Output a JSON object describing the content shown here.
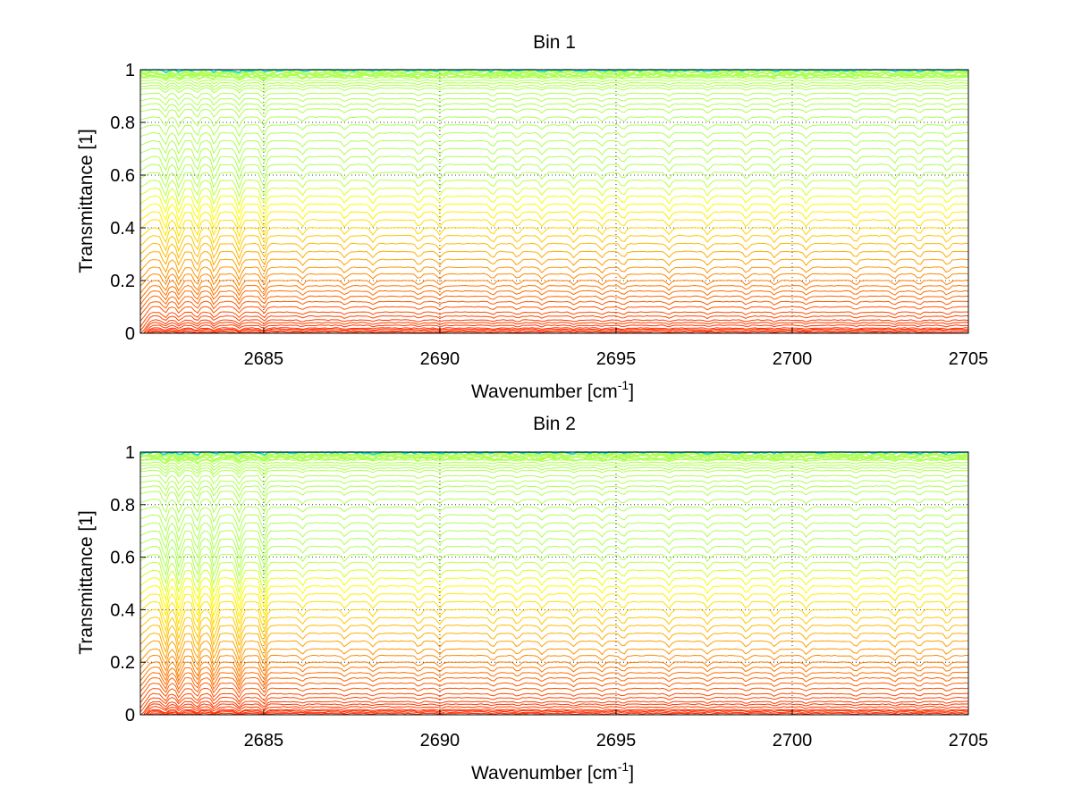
{
  "chart_data": [
    {
      "type": "line",
      "title": "Bin 1",
      "xlabel": "Wavenumber [cm",
      "xlabel_sup": "-1",
      "xlabel_end": "]",
      "ylabel": "Transmittance [1]",
      "xlim": [
        2681.5,
        2705
      ],
      "ylim": [
        0,
        1
      ],
      "xticks": [
        2685,
        2690,
        2695,
        2700,
        2705
      ],
      "yticks": [
        0,
        0.2,
        0.4,
        0.6,
        0.8,
        1
      ],
      "xtick_labels": [
        "2685",
        "2690",
        "2695",
        "2700",
        "2705"
      ],
      "ytick_labels": [
        "0",
        "0.2",
        "0.4",
        "0.6",
        "0.8",
        "1"
      ],
      "grid": true,
      "colormap": [
        "#0000c8",
        "#0080ff",
        "#00e0e0",
        "#80ff80",
        "#ffff00",
        "#ffc000",
        "#ff8000",
        "#ff4000",
        "#ff0000"
      ],
      "series_description": "many spectra (one per layer) spanning transmittance 0 to 1, colored by layer",
      "line_levels": [
        0.0,
        0.005,
        0.01,
        0.015,
        0.02,
        0.03,
        0.04,
        0.05,
        0.065,
        0.08,
        0.1,
        0.12,
        0.14,
        0.16,
        0.18,
        0.2,
        0.225,
        0.25,
        0.28,
        0.31,
        0.34,
        0.37,
        0.4,
        0.43,
        0.46,
        0.49,
        0.52,
        0.55,
        0.58,
        0.61,
        0.64,
        0.67,
        0.7,
        0.73,
        0.76,
        0.79,
        0.82,
        0.85,
        0.87,
        0.89,
        0.91,
        0.93,
        0.94,
        0.95,
        0.96,
        0.97,
        0.975,
        0.98,
        0.985,
        0.99,
        0.995,
        1.0
      ],
      "absorption_lines": [
        2682.2,
        2682.6,
        2683.1,
        2683.6,
        2684.3,
        2685.0,
        2686.1,
        2687.3,
        2688.1,
        2689.4,
        2690.0,
        2691.5,
        2692.2,
        2692.9,
        2693.8,
        2694.6,
        2695.2,
        2696.5,
        2697.6,
        2698.7,
        2699.5,
        2700.4,
        2701.8,
        2702.9,
        2703.6,
        2704.4
      ]
    },
    {
      "type": "line",
      "title": "Bin 2",
      "xlabel": "Wavenumber [cm",
      "xlabel_sup": "-1",
      "xlabel_end": "]",
      "ylabel": "Transmittance [1]",
      "xlim": [
        2681.5,
        2705
      ],
      "ylim": [
        0,
        1
      ],
      "xticks": [
        2685,
        2690,
        2695,
        2700,
        2705
      ],
      "yticks": [
        0,
        0.2,
        0.4,
        0.6,
        0.8,
        1
      ],
      "xtick_labels": [
        "2685",
        "2690",
        "2695",
        "2700",
        "2705"
      ],
      "ytick_labels": [
        "0",
        "0.2",
        "0.4",
        "0.6",
        "0.8",
        "1"
      ],
      "grid": true,
      "colormap": [
        "#0000c8",
        "#0080ff",
        "#00e0e0",
        "#80ff80",
        "#ffff00",
        "#ffc000",
        "#ff8000",
        "#ff4000",
        "#ff0000"
      ],
      "series_description": "many spectra (one per layer) spanning transmittance 0 to 1, colored by layer",
      "line_levels": [
        0.0,
        0.005,
        0.01,
        0.015,
        0.02,
        0.03,
        0.04,
        0.05,
        0.065,
        0.08,
        0.1,
        0.12,
        0.14,
        0.16,
        0.18,
        0.2,
        0.225,
        0.25,
        0.28,
        0.31,
        0.34,
        0.37,
        0.4,
        0.43,
        0.46,
        0.49,
        0.52,
        0.55,
        0.58,
        0.61,
        0.64,
        0.67,
        0.7,
        0.73,
        0.76,
        0.79,
        0.82,
        0.85,
        0.87,
        0.89,
        0.91,
        0.93,
        0.94,
        0.95,
        0.96,
        0.97,
        0.975,
        0.98,
        0.985,
        0.99,
        0.995,
        1.0
      ],
      "absorption_lines": [
        2682.2,
        2682.6,
        2683.1,
        2683.6,
        2684.3,
        2685.0,
        2686.1,
        2687.3,
        2688.1,
        2689.4,
        2690.0,
        2691.5,
        2692.2,
        2692.9,
        2693.8,
        2694.6,
        2695.2,
        2696.5,
        2697.6,
        2698.7,
        2699.5,
        2700.4,
        2701.8,
        2702.9,
        2703.6,
        2704.4
      ]
    }
  ]
}
